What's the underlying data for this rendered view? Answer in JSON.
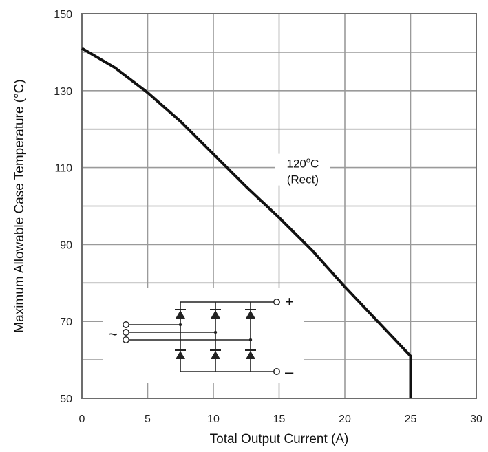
{
  "chart_data": {
    "type": "line",
    "xlabel": "Total Output Current (A)",
    "ylabel": "Maximum Allowable Case Temperature (°C)",
    "xlim": [
      0,
      30
    ],
    "ylim": [
      50,
      150
    ],
    "xticks": [
      0,
      5,
      10,
      15,
      20,
      25,
      30
    ],
    "yticks": [
      50,
      70,
      90,
      110,
      130,
      150
    ],
    "grid": true,
    "series": [
      {
        "name": "",
        "x": [
          0,
          2.5,
          5,
          7.5,
          10,
          12.5,
          15,
          17.5,
          20,
          22.5,
          25,
          25,
          25
        ],
        "y": [
          141,
          136,
          129.5,
          122,
          113.5,
          105,
          97,
          88.5,
          79,
          70,
          61,
          55,
          50
        ]
      }
    ],
    "annotations": [
      {
        "line1": "120°C",
        "line1_main": "120",
        "line1_sup": "o",
        "line1_unit": "C",
        "line2": "(Rect)",
        "x": 16.8,
        "y": 110
      }
    ],
    "inset": {
      "description_symbols": {
        "ac": "~",
        "plus": "+",
        "minus": "–"
      }
    }
  }
}
